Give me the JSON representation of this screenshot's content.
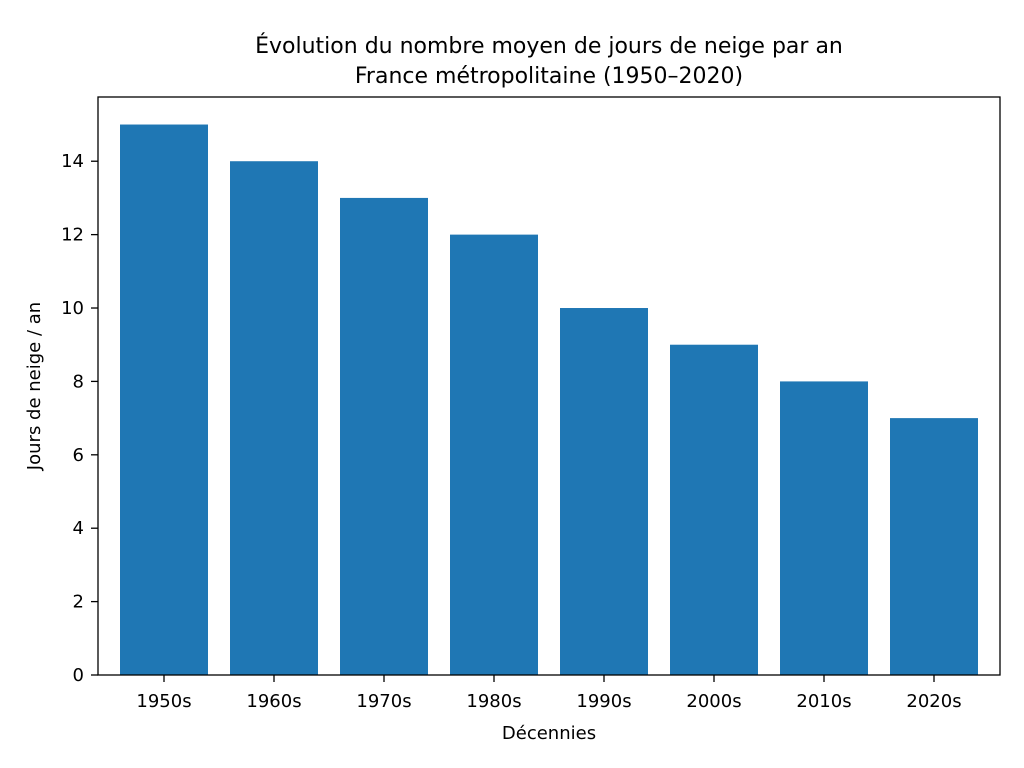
{
  "chart_data": {
    "type": "bar",
    "title_line1": "Évolution du nombre moyen de jours de neige par an",
    "title_line2": "France métropolitaine (1950–2020)",
    "xlabel": "Décennies",
    "ylabel": "Jours de neige / an",
    "categories": [
      "1950s",
      "1960s",
      "1970s",
      "1980s",
      "1990s",
      "2000s",
      "2010s",
      "2020s"
    ],
    "values": [
      15,
      14,
      13,
      12,
      10,
      9,
      8,
      7
    ],
    "ylim": [
      0,
      15.75
    ],
    "yticks": [
      0,
      2,
      4,
      6,
      8,
      10,
      12,
      14
    ],
    "bar_color": "#1f77b4",
    "grid": false,
    "legend": "none"
  }
}
